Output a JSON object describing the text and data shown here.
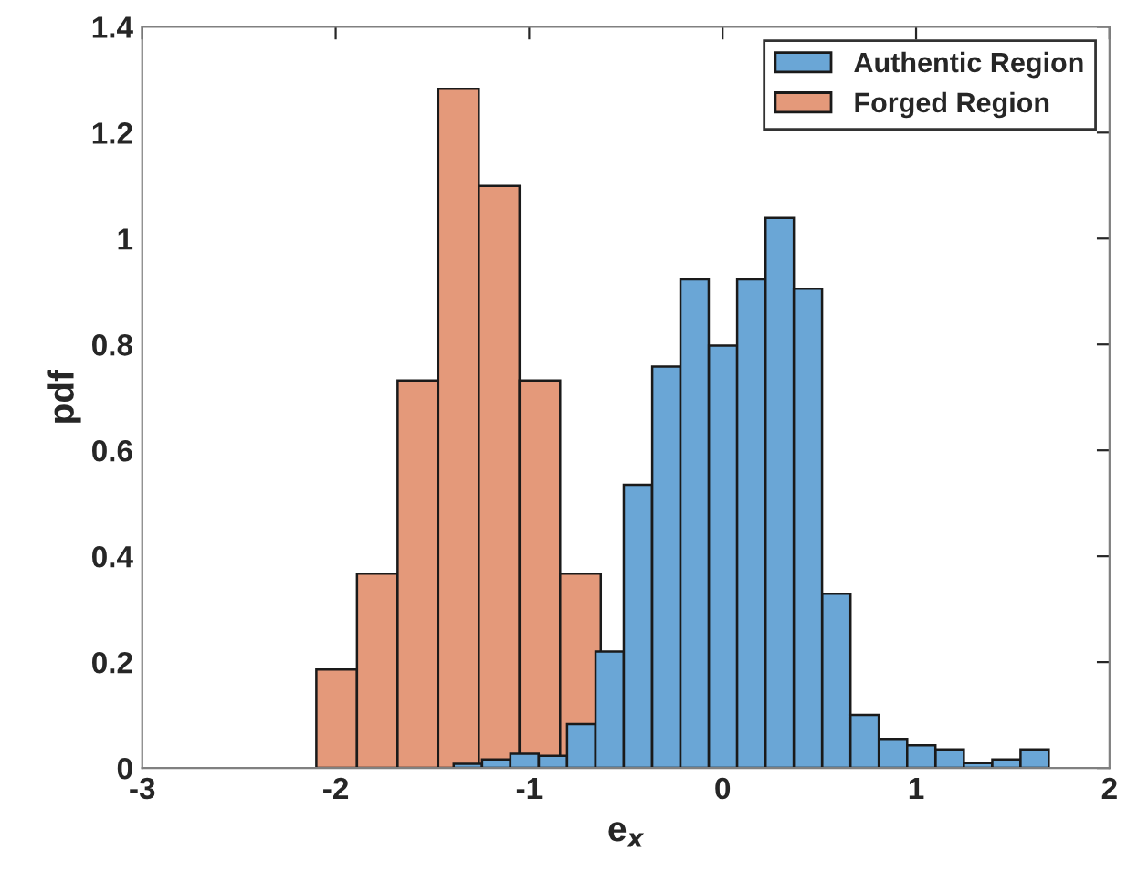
{
  "chart_data": {
    "type": "bar",
    "xlabel": "e$_{x}$",
    "ylabel": "pdf",
    "series": [
      {
        "name": "Authentic Region",
        "color": "#6aa6d6",
        "x": [
          -1.317,
          -1.17,
          -1.024,
          -0.877,
          -0.731,
          -0.584,
          -0.438,
          -0.291,
          -0.145,
          0.002,
          0.148,
          0.295,
          0.441,
          0.588,
          0.734,
          0.881,
          1.027,
          1.174,
          1.32,
          1.467,
          1.613
        ],
        "values": [
          0.008,
          0.016,
          0.027,
          0.023,
          0.083,
          0.22,
          0.535,
          0.758,
          0.923,
          0.798,
          0.923,
          1.039,
          0.905,
          0.329,
          0.1,
          0.055,
          0.043,
          0.035,
          0.009,
          0.016,
          0.035
        ]
      },
      {
        "name": "Forged Region",
        "color": "#e4997a",
        "x": [
          -1.995,
          -1.785,
          -1.575,
          -1.365,
          -1.155,
          -0.945,
          -0.735
        ],
        "values": [
          0.186,
          0.367,
          0.732,
          1.283,
          1.099,
          0.732,
          0.367
        ]
      }
    ],
    "xlim": [
      -3,
      2
    ],
    "xticks": [
      -3,
      -2,
      -1,
      0,
      1,
      2
    ],
    "ylim": [
      0,
      1.4
    ],
    "yticks": [
      0,
      0.2,
      0.4,
      0.6,
      0.8,
      1,
      1.2,
      1.4
    ],
    "legend": "top right",
    "grid": false
  }
}
